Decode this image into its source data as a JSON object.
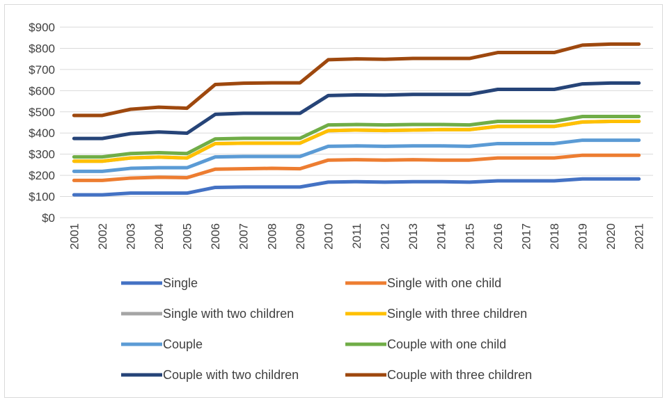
{
  "chart_data": {
    "type": "line",
    "title": "",
    "xlabel": "",
    "ylabel": "",
    "ylim": [
      0,
      900
    ],
    "y_tick_step": 100,
    "y_tick_labels": [
      "$0",
      "$100",
      "$200",
      "$300",
      "$400",
      "$500",
      "$600",
      "$700",
      "$800",
      "$900"
    ],
    "grid": true,
    "legend_position": "bottom",
    "x": [
      "2001",
      "2002",
      "2003",
      "2004",
      "2005",
      "2006",
      "2007",
      "2008",
      "2009",
      "2010",
      "2011",
      "2012",
      "2013",
      "2014",
      "2015",
      "2016",
      "2017",
      "2018",
      "2019",
      "2020",
      "2021"
    ],
    "series": [
      {
        "name": "Single",
        "color": "#4472C4",
        "values": [
          108,
          108,
          116,
          116,
          116,
          143,
          145,
          145,
          145,
          168,
          170,
          168,
          170,
          170,
          168,
          174,
          174,
          174,
          183,
          183,
          183
        ]
      },
      {
        "name": "Single with one child",
        "color": "#ED7D31",
        "values": [
          176,
          176,
          187,
          191,
          189,
          229,
          231,
          233,
          231,
          272,
          274,
          272,
          274,
          272,
          272,
          282,
          282,
          282,
          295,
          295,
          295
        ]
      },
      {
        "name": "Single with two children",
        "color": "#A5A5A5",
        "values": [
          267,
          267,
          282,
          286,
          282,
          350,
          352,
          352,
          352,
          411,
          414,
          412,
          414,
          416,
          416,
          431,
          431,
          431,
          452,
          455,
          455
        ]
      },
      {
        "name": "Single with three children",
        "color": "#FFC000",
        "values": [
          267,
          267,
          282,
          286,
          282,
          350,
          352,
          352,
          352,
          411,
          414,
          412,
          414,
          416,
          416,
          431,
          431,
          431,
          452,
          455,
          455
        ]
      },
      {
        "name": "Couple",
        "color": "#5B9BD5",
        "values": [
          219,
          219,
          233,
          236,
          236,
          287,
          289,
          289,
          289,
          337,
          339,
          337,
          339,
          339,
          337,
          350,
          350,
          350,
          366,
          366,
          366
        ]
      },
      {
        "name": "Couple with one child",
        "color": "#70AD47",
        "values": [
          287,
          287,
          303,
          307,
          303,
          372,
          375,
          375,
          375,
          438,
          440,
          438,
          440,
          440,
          438,
          455,
          455,
          455,
          478,
          478,
          478
        ]
      },
      {
        "name": "Couple with two children",
        "color": "#264478",
        "values": [
          374,
          374,
          397,
          405,
          399,
          488,
          493,
          493,
          493,
          577,
          580,
          579,
          582,
          582,
          582,
          606,
          606,
          606,
          632,
          636,
          636
        ]
      },
      {
        "name": "Couple with three children",
        "color": "#9E480E",
        "values": [
          483,
          483,
          512,
          522,
          517,
          629,
          635,
          637,
          637,
          746,
          750,
          748,
          752,
          752,
          752,
          780,
          780,
          780,
          815,
          820,
          820
        ]
      }
    ]
  }
}
